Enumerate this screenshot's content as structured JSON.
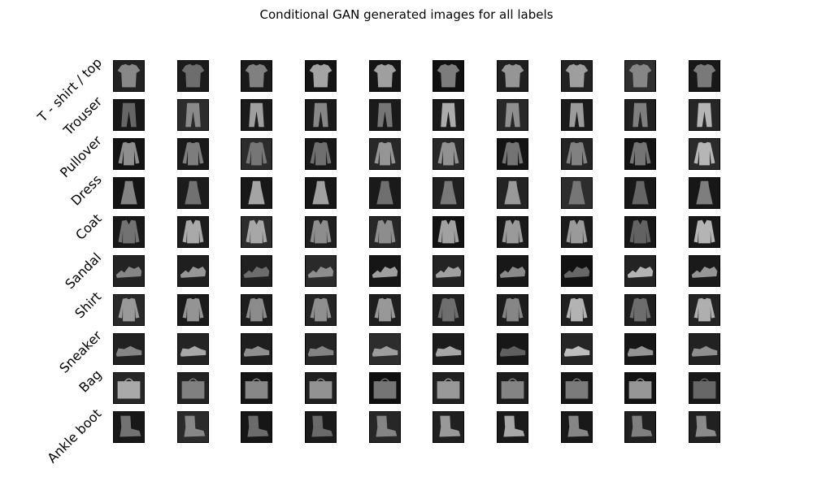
{
  "title": "Conditional GAN generated images for all labels",
  "labels": [
    {
      "name": "T - shirt / top",
      "shape": "tshirt"
    },
    {
      "name": "Trouser",
      "shape": "trouser"
    },
    {
      "name": "Pullover",
      "shape": "pullover"
    },
    {
      "name": "Dress",
      "shape": "dress"
    },
    {
      "name": "Coat",
      "shape": "coat"
    },
    {
      "name": "Sandal",
      "shape": "sandal"
    },
    {
      "name": "Shirt",
      "shape": "shirt"
    },
    {
      "name": "Sneaker",
      "shape": "sneaker"
    },
    {
      "name": "Bag",
      "shape": "bag"
    },
    {
      "name": "Ankle boot",
      "shape": "boot"
    }
  ],
  "samples_per_label": 10
}
